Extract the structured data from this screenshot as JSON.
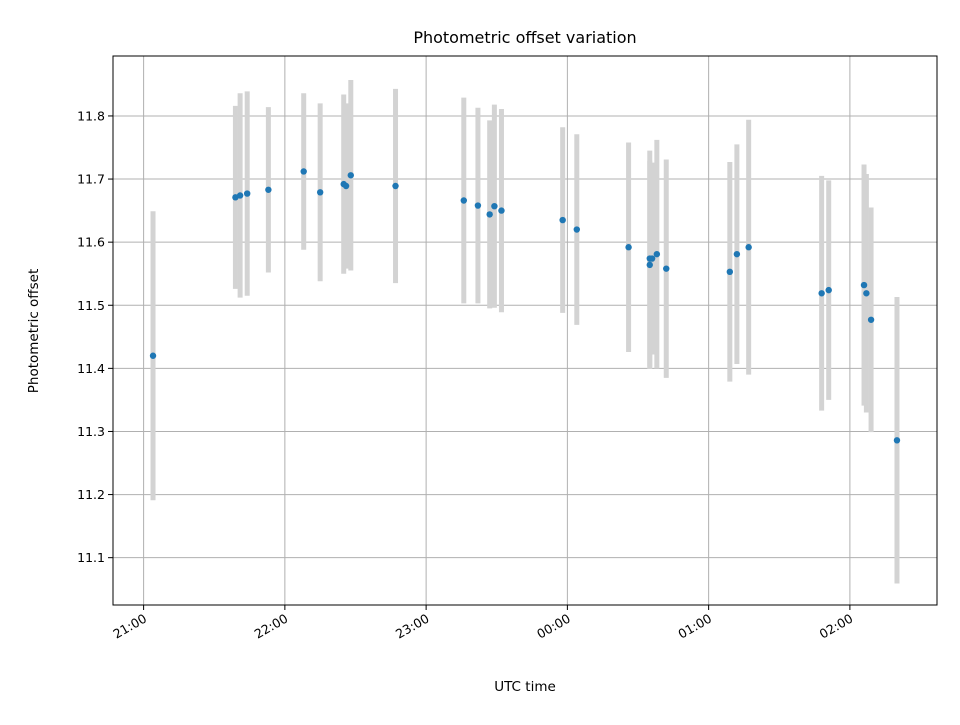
{
  "chart_data": {
    "type": "scatter",
    "title": "Photometric offset variation",
    "xlabel": "UTC time",
    "ylabel": "Photometric offset",
    "grid": true,
    "xlim": [
      "20:47",
      "02:37"
    ],
    "ylim": [
      11.025,
      11.895
    ],
    "x_ticks": [
      "21:00",
      "22:00",
      "23:00",
      "00:00",
      "01:00",
      "02:00"
    ],
    "y_ticks": [
      "11.1",
      "11.2",
      "11.3",
      "11.4",
      "11.5",
      "11.6",
      "11.7",
      "11.8"
    ],
    "colors": {
      "point": "#1f77b4",
      "errorbar": "#d3d3d3",
      "grid": "#b0b0b0"
    },
    "points": [
      {
        "x": "21:04",
        "y": 11.42,
        "err": 0.229
      },
      {
        "x": "21:39",
        "y": 11.671,
        "err": 0.145
      },
      {
        "x": "21:41",
        "y": 11.674,
        "err": 0.162
      },
      {
        "x": "21:44",
        "y": 11.677,
        "err": 0.162
      },
      {
        "x": "21:53",
        "y": 11.683,
        "err": 0.131
      },
      {
        "x": "22:08",
        "y": 11.712,
        "err": 0.124
      },
      {
        "x": "22:15",
        "y": 11.679,
        "err": 0.141
      },
      {
        "x": "22:25",
        "y": 11.692,
        "err": 0.142
      },
      {
        "x": "22:26",
        "y": 11.689,
        "err": 0.131
      },
      {
        "x": "22:28",
        "y": 11.706,
        "err": 0.151
      },
      {
        "x": "22:47",
        "y": 11.689,
        "err": 0.154
      },
      {
        "x": "23:16",
        "y": 11.666,
        "err": 0.163
      },
      {
        "x": "23:22",
        "y": 11.658,
        "err": 0.155
      },
      {
        "x": "23:27",
        "y": 11.644,
        "err": 0.149
      },
      {
        "x": "23:29",
        "y": 11.657,
        "err": 0.161
      },
      {
        "x": "23:32",
        "y": 11.65,
        "err": 0.161
      },
      {
        "x": "23:58",
        "y": 11.635,
        "err": 0.147
      },
      {
        "x": "00:04",
        "y": 11.62,
        "err": 0.151
      },
      {
        "x": "00:26",
        "y": 11.592,
        "err": 0.166
      },
      {
        "x": "00:35",
        "y": 11.574,
        "err": 0.171
      },
      {
        "x": "00:35",
        "y": 11.564,
        "err": 0.165
      },
      {
        "x": "00:36",
        "y": 11.574,
        "err": 0.152
      },
      {
        "x": "00:38",
        "y": 11.581,
        "err": 0.181
      },
      {
        "x": "00:42",
        "y": 11.558,
        "err": 0.173
      },
      {
        "x": "01:09",
        "y": 11.553,
        "err": 0.174
      },
      {
        "x": "01:12",
        "y": 11.581,
        "err": 0.174
      },
      {
        "x": "01:17",
        "y": 11.592,
        "err": 0.202
      },
      {
        "x": "01:48",
        "y": 11.519,
        "err": 0.186
      },
      {
        "x": "01:51",
        "y": 11.524,
        "err": 0.174
      },
      {
        "x": "02:06",
        "y": 11.532,
        "err": 0.191
      },
      {
        "x": "02:07",
        "y": 11.519,
        "err": 0.189
      },
      {
        "x": "02:09",
        "y": 11.477,
        "err": 0.178
      },
      {
        "x": "02:20",
        "y": 11.286,
        "err": 0.227
      }
    ]
  }
}
